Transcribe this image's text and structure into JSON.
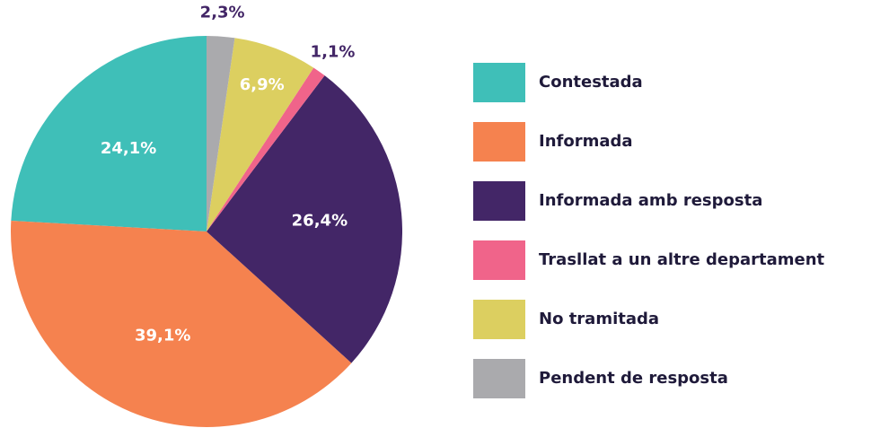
{
  "chart_data": {
    "type": "pie",
    "categories": [
      "Contestada",
      "Informada",
      "Informada amb resposta",
      "Trasllat a un altre departament",
      "No tramitada",
      "Pendent de resposta"
    ],
    "values": [
      24.1,
      39.1,
      26.4,
      1.1,
      6.9,
      2.3
    ],
    "value_labels": [
      "24,1%",
      "39,1%",
      "26,4%",
      "1,1%",
      "6,9%",
      "2,3%"
    ],
    "colors": [
      "#3fbfb8",
      "#f5824f",
      "#432667",
      "#f0648a",
      "#dccf60",
      "#aaaaad"
    ],
    "legend": "right"
  }
}
